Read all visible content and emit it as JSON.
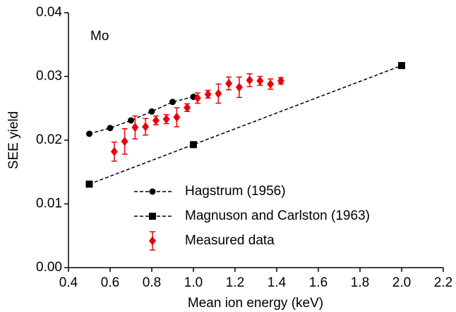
{
  "chart_data": {
    "type": "line",
    "xlabel": "Mean ion energy (keV)",
    "ylabel": "SEE yield",
    "annotation": "Mo",
    "xlim": [
      0.4,
      2.2
    ],
    "ylim": [
      0,
      0.04
    ],
    "xticks": [
      0.4,
      0.6,
      0.8,
      {
        "value": 1.0,
        "label": "1.0"
      },
      1.2,
      1.4,
      1.6,
      1.8,
      {
        "value": 2.0,
        "label": "2.0"
      },
      2.2
    ],
    "yticks": [
      {
        "value": 0,
        "label": "0.00"
      },
      0.01,
      0.02,
      0.03,
      0.04
    ],
    "series": [
      {
        "name": "Hagstrum (1956)",
        "color": "#000000",
        "marker": "circle",
        "linestyle": "dashed",
        "x": [
          0.5,
          0.6,
          0.7,
          0.8,
          0.9,
          1.0
        ],
        "values": [
          0.021,
          0.0219,
          0.0231,
          0.0245,
          0.026,
          0.0268
        ]
      },
      {
        "name": "Magnuson and Carlston (1963)",
        "color": "#000000",
        "marker": "square",
        "linestyle": "dashed",
        "x": [
          0.5,
          1.0,
          2.0
        ],
        "values": [
          0.0131,
          0.0193,
          0.0317
        ]
      },
      {
        "name": "Measured data",
        "color": "#e8000b",
        "marker": "diamond",
        "linestyle": "none",
        "x": [
          0.62,
          0.67,
          0.72,
          0.77,
          0.82,
          0.87,
          0.92,
          0.97,
          1.02,
          1.07,
          1.12,
          1.17,
          1.22,
          1.27,
          1.32,
          1.37,
          1.42
        ],
        "values": [
          0.0182,
          0.0198,
          0.022,
          0.0221,
          0.0231,
          0.0233,
          0.0236,
          0.0251,
          0.0266,
          0.0272,
          0.0273,
          0.0289,
          0.0283,
          0.0294,
          0.0293,
          0.0288,
          0.0293
        ],
        "errors": [
          0.0015,
          0.002,
          0.0018,
          0.0013,
          0.0007,
          0.0007,
          0.0015,
          0.0006,
          0.0008,
          0.0006,
          0.0015,
          0.001,
          0.0016,
          0.001,
          0.0007,
          0.0008,
          0.0005
        ]
      }
    ]
  }
}
